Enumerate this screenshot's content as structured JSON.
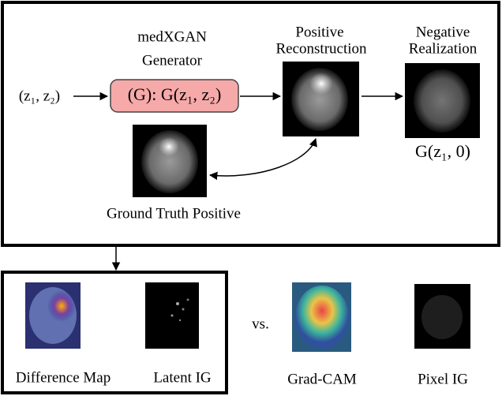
{
  "generator": {
    "title_lines": [
      "medXGAN",
      "Generator"
    ],
    "label": "(G): G(z₁, z₂)"
  },
  "input": {
    "label": "(z₁, z₂)"
  },
  "positive": {
    "title_lines": [
      "Positive",
      "Reconstruction"
    ]
  },
  "negative": {
    "title_lines": [
      "Negative",
      "Realization"
    ],
    "formula": "G(z₁, 0)"
  },
  "ground_truth": {
    "label": "Ground Truth Positive"
  },
  "outputs": {
    "difference_map": "Difference Map",
    "latent_ig": "Latent IG",
    "vs": "vs.",
    "grad_cam": "Grad-CAM",
    "pixel_ig": "Pixel IG"
  }
}
